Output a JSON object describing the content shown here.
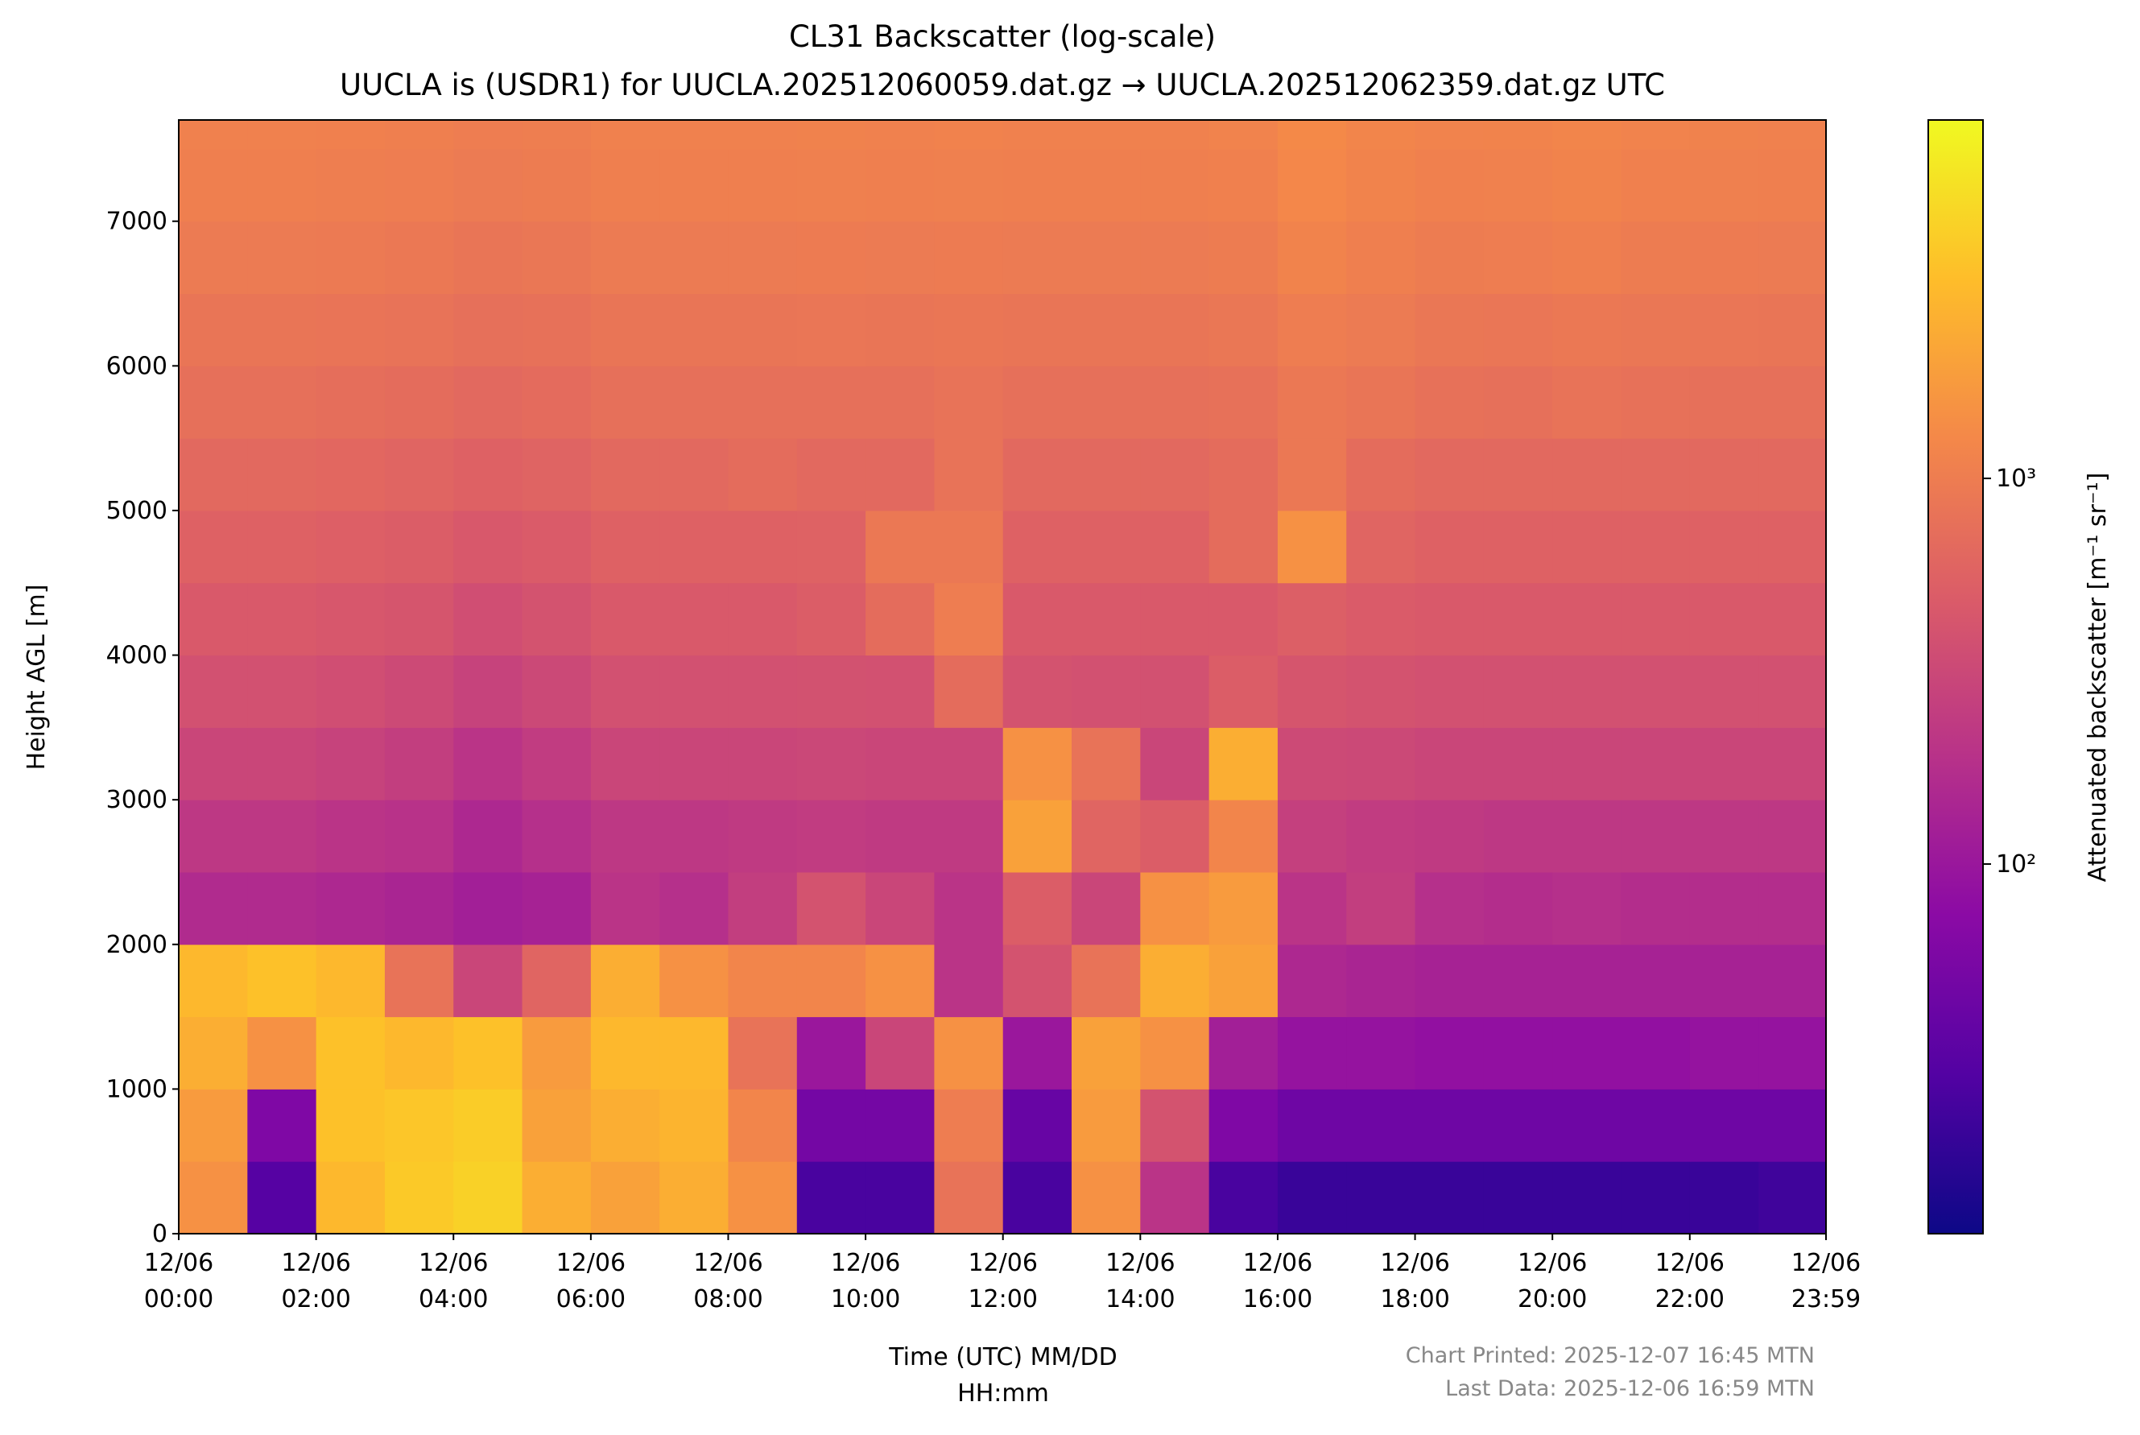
{
  "chart_data": {
    "type": "heatmap",
    "title": "CL31 Backscatter (log-scale)",
    "subtitle": "UUCLA is (USDR1) for UUCLA.202512060059.dat.gz → UUCLA.202512062359.dat.gz UTC",
    "xlabel": "Time (UTC) MM/DD\nHH:mm",
    "ylabel": "Height AGL [m]",
    "colorbar_label": "Attenuated backscatter [m⁻¹ sr⁻¹]",
    "footer": [
      "Chart Printed: 2025-12-07 16:45 MTN",
      "Last Data: 2025-12-06 16:59 MTN"
    ],
    "xlim": [
      0,
      1439
    ],
    "xticks": [
      {
        "value": 0,
        "label": "12/06\n00:00"
      },
      {
        "value": 120,
        "label": "12/06\n02:00"
      },
      {
        "value": 240,
        "label": "12/06\n04:00"
      },
      {
        "value": 360,
        "label": "12/06\n06:00"
      },
      {
        "value": 480,
        "label": "12/06\n08:00"
      },
      {
        "value": 600,
        "label": "12/06\n10:00"
      },
      {
        "value": 720,
        "label": "12/06\n12:00"
      },
      {
        "value": 840,
        "label": "12/06\n14:00"
      },
      {
        "value": 960,
        "label": "12/06\n16:00"
      },
      {
        "value": 1080,
        "label": "12/06\n18:00"
      },
      {
        "value": 1200,
        "label": "12/06\n20:00"
      },
      {
        "value": 1320,
        "label": "12/06\n22:00"
      },
      {
        "value": 1439,
        "label": "12/06\n23:59"
      }
    ],
    "ylim": [
      0,
      7700
    ],
    "yticks": [
      0,
      1000,
      2000,
      3000,
      4000,
      5000,
      6000,
      7000
    ],
    "clim": [
      11,
      8500
    ],
    "cscale": "log",
    "cticks": [
      {
        "value": 100,
        "label": "10²"
      },
      {
        "value": 1000,
        "label": "10³"
      }
    ],
    "colormap": [
      "#0d0887",
      "#5302a3",
      "#8b0aa5",
      "#b83289",
      "#db5c68",
      "#f48849",
      "#febd2a",
      "#f0f921"
    ],
    "xbins": [
      0,
      60,
      120,
      180,
      240,
      300,
      360,
      420,
      480,
      540,
      600,
      660,
      720,
      780,
      840,
      900,
      960,
      1020,
      1080,
      1140,
      1200,
      1260,
      1320,
      1380,
      1439
    ],
    "ybins": [
      0,
      500,
      1000,
      1500,
      2000,
      2500,
      3000,
      3500,
      4000,
      4500,
      5000,
      5500,
      6000,
      6500,
      7000,
      7500,
      7700
    ],
    "values": [
      [
        1500,
        30,
        3000,
        4000,
        4500,
        2500,
        2000,
        2500,
        1500,
        25,
        25,
        800,
        25,
        1500,
        200,
        25,
        20,
        20,
        20,
        20,
        20,
        20,
        20,
        22
      ],
      [
        1800,
        60,
        3500,
        3800,
        4200,
        2000,
        2500,
        2800,
        1200,
        50,
        50,
        1000,
        40,
        1800,
        400,
        60,
        45,
        45,
        45,
        45,
        45,
        45,
        45,
        45
      ],
      [
        2500,
        1500,
        3500,
        3000,
        3500,
        1800,
        3000,
        3000,
        800,
        100,
        300,
        1500,
        100,
        2000,
        1500,
        120,
        90,
        90,
        85,
        85,
        85,
        85,
        90,
        90
      ],
      [
        3000,
        3500,
        3000,
        800,
        300,
        600,
        2500,
        1500,
        1200,
        1200,
        1500,
        200,
        400,
        800,
        2500,
        2000,
        150,
        140,
        130,
        130,
        130,
        130,
        130,
        130
      ],
      [
        160,
        160,
        150,
        140,
        120,
        130,
        200,
        180,
        250,
        400,
        300,
        200,
        500,
        300,
        1500,
        1800,
        200,
        250,
        180,
        170,
        180,
        170,
        170,
        170
      ],
      [
        220,
        220,
        200,
        190,
        150,
        180,
        220,
        220,
        230,
        240,
        230,
        230,
        2000,
        600,
        500,
        1200,
        260,
        240,
        230,
        220,
        220,
        220,
        220,
        220
      ],
      [
        300,
        300,
        280,
        250,
        200,
        240,
        300,
        300,
        300,
        310,
        300,
        300,
        1500,
        800,
        300,
        2500,
        330,
        320,
        300,
        300,
        300,
        300,
        300,
        300
      ],
      [
        380,
        380,
        360,
        330,
        280,
        320,
        380,
        380,
        380,
        390,
        380,
        700,
        400,
        380,
        380,
        500,
        420,
        400,
        380,
        380,
        380,
        380,
        380,
        380
      ],
      [
        460,
        460,
        440,
        420,
        360,
        400,
        460,
        460,
        460,
        500,
        700,
        1000,
        460,
        460,
        460,
        460,
        520,
        480,
        460,
        460,
        460,
        460,
        460,
        460
      ],
      [
        550,
        550,
        530,
        500,
        450,
        480,
        550,
        550,
        550,
        560,
        900,
        900,
        550,
        550,
        550,
        700,
        1500,
        600,
        550,
        550,
        550,
        550,
        550,
        550
      ],
      [
        650,
        650,
        630,
        600,
        550,
        580,
        650,
        650,
        700,
        650,
        650,
        800,
        650,
        650,
        650,
        700,
        900,
        700,
        650,
        650,
        650,
        650,
        650,
        650
      ],
      [
        750,
        750,
        730,
        700,
        650,
        680,
        750,
        750,
        750,
        760,
        750,
        800,
        750,
        750,
        750,
        780,
        900,
        850,
        780,
        760,
        800,
        780,
        760,
        750
      ],
      [
        850,
        850,
        830,
        800,
        750,
        780,
        850,
        850,
        850,
        860,
        850,
        870,
        850,
        850,
        850,
        880,
        1000,
        950,
        880,
        860,
        900,
        880,
        860,
        850
      ],
      [
        950,
        950,
        930,
        900,
        850,
        880,
        950,
        950,
        950,
        960,
        950,
        970,
        950,
        950,
        950,
        980,
        1150,
        1050,
        980,
        1000,
        1050,
        980,
        960,
        950
      ],
      [
        1050,
        1050,
        1030,
        1000,
        950,
        980,
        1050,
        1050,
        1050,
        1060,
        1050,
        1070,
        1050,
        1050,
        1050,
        1080,
        1250,
        1150,
        1080,
        1100,
        1150,
        1080,
        1060,
        1050
      ],
      [
        1100,
        1100,
        1080,
        1050,
        1000,
        1030,
        1100,
        1100,
        1100,
        1110,
        1100,
        1120,
        1100,
        1100,
        1100,
        1130,
        1300,
        1200,
        1130,
        1150,
        1200,
        1130,
        1110,
        1100
      ]
    ]
  }
}
